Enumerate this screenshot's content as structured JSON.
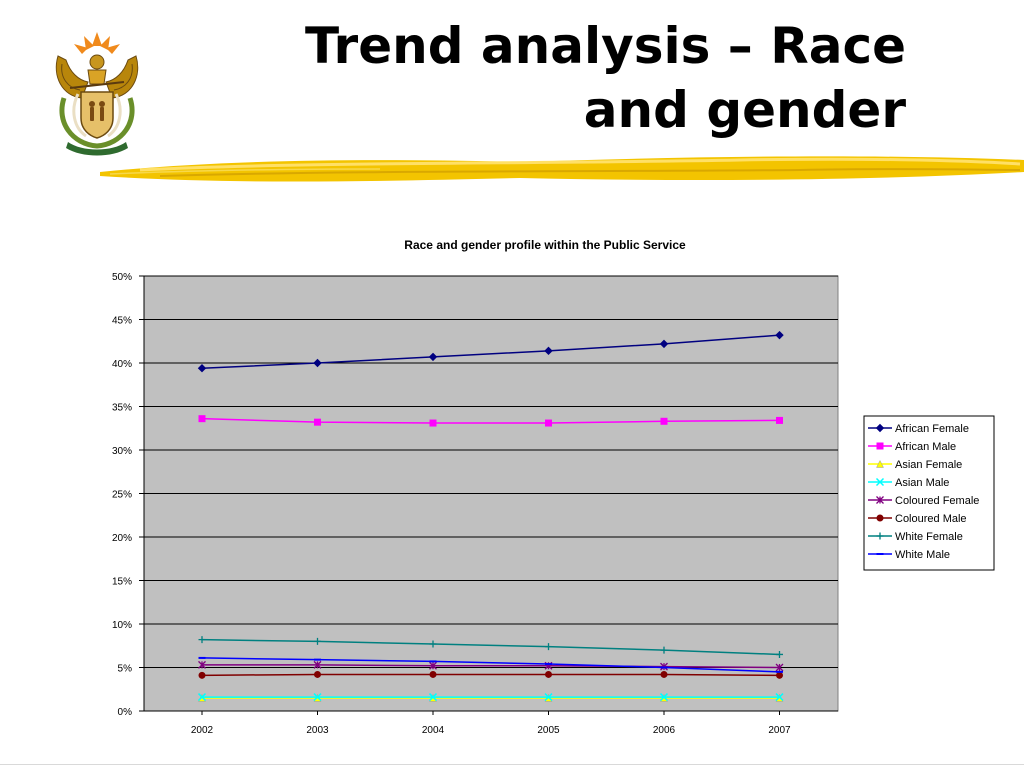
{
  "slide": {
    "title_line1": "Trend analysis – Race",
    "title_line2": "and gender"
  },
  "colors": {
    "brush_yellow": "#f3c400",
    "plot_background": "#c0c0c0",
    "gridline": "#000000"
  },
  "chart_data": {
    "type": "line",
    "title": "Race and gender profile within the Public Service",
    "xlabel": "",
    "ylabel": "",
    "categories": [
      "2002",
      "2003",
      "2004",
      "2005",
      "2006",
      "2007"
    ],
    "y_ticks": [
      "0%",
      "5%",
      "10%",
      "15%",
      "20%",
      "25%",
      "30%",
      "35%",
      "40%",
      "45%",
      "50%"
    ],
    "ylim": [
      0,
      50
    ],
    "grid": true,
    "legend_position": "right",
    "series": [
      {
        "name": "African Female",
        "color": "#000080",
        "marker": "diamond",
        "values": [
          39.4,
          40.0,
          40.7,
          41.4,
          42.2,
          43.2
        ]
      },
      {
        "name": "African Male",
        "color": "#ff00ff",
        "marker": "square",
        "values": [
          33.6,
          33.2,
          33.1,
          33.1,
          33.3,
          33.4
        ]
      },
      {
        "name": "Asian Female",
        "color": "#ffff00",
        "marker": "triangle",
        "values": [
          1.5,
          1.5,
          1.5,
          1.5,
          1.5,
          1.5
        ]
      },
      {
        "name": "Asian Male",
        "color": "#00ffff",
        "marker": "x",
        "values": [
          1.6,
          1.6,
          1.6,
          1.6,
          1.6,
          1.6
        ]
      },
      {
        "name": "Coloured Female",
        "color": "#800080",
        "marker": "star",
        "values": [
          5.3,
          5.3,
          5.2,
          5.2,
          5.1,
          5.0
        ]
      },
      {
        "name": "Coloured Male",
        "color": "#800000",
        "marker": "circle",
        "values": [
          4.1,
          4.2,
          4.2,
          4.2,
          4.2,
          4.1
        ]
      },
      {
        "name": "White Female",
        "color": "#008080",
        "marker": "plus",
        "values": [
          8.2,
          8.0,
          7.7,
          7.4,
          7.0,
          6.5
        ]
      },
      {
        "name": "White Male",
        "color": "#0000ff",
        "marker": "dash",
        "values": [
          6.1,
          5.9,
          5.7,
          5.4,
          5.0,
          4.5
        ]
      }
    ]
  }
}
